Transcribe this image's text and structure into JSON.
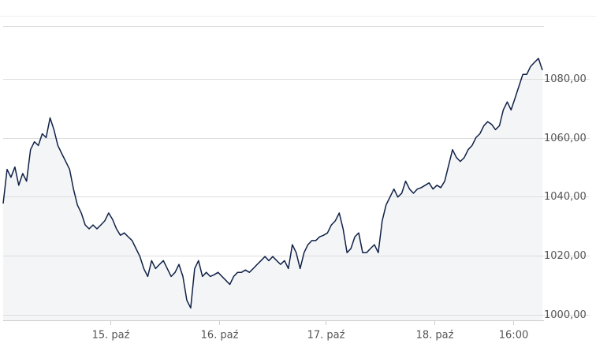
{
  "chart_data": {
    "type": "line",
    "series": [
      {
        "name": null,
        "color": "#0f2147",
        "values": [
          1037.7,
          1049.3,
          1046.6,
          1050.1,
          1043.9,
          1047.9,
          1045.3,
          1056.0,
          1058.7,
          1057.4,
          1061.4,
          1060.1,
          1066.8,
          1062.8,
          1057.4,
          1054.7,
          1052.0,
          1049.3,
          1042.6,
          1037.2,
          1034.5,
          1030.4,
          1029.1,
          1030.4,
          1029.1,
          1030.4,
          1031.8,
          1034.5,
          1032.3,
          1029.1,
          1026.9,
          1027.7,
          1026.4,
          1025.1,
          1022.4,
          1019.7,
          1015.6,
          1012.9,
          1018.3,
          1015.6,
          1017.0,
          1018.3,
          1015.6,
          1012.9,
          1014.3,
          1017.0,
          1012.9,
          1004.8,
          1002.2,
          1015.6,
          1018.3,
          1012.9,
          1014.3,
          1012.9,
          1013.5,
          1014.3,
          1012.9,
          1011.6,
          1010.2,
          1012.9,
          1014.3,
          1014.3,
          1015.1,
          1014.3,
          1015.6,
          1017.0,
          1018.3,
          1019.7,
          1018.3,
          1019.7,
          1018.3,
          1017.0,
          1018.3,
          1015.6,
          1023.7,
          1021.0,
          1015.6,
          1021.0,
          1023.7,
          1025.1,
          1025.1,
          1026.4,
          1026.9,
          1027.7,
          1030.4,
          1031.8,
          1034.5,
          1029.1,
          1021.0,
          1022.4,
          1026.4,
          1027.7,
          1021.0,
          1021.0,
          1022.4,
          1023.7,
          1021.0,
          1031.8,
          1037.2,
          1039.9,
          1042.6,
          1039.9,
          1041.2,
          1045.3,
          1042.6,
          1041.2,
          1042.6,
          1043.1,
          1043.9,
          1044.7,
          1042.6,
          1043.9,
          1043.1,
          1045.3,
          1050.6,
          1056.0,
          1053.3,
          1052.0,
          1053.3,
          1056.0,
          1057.4,
          1060.1,
          1061.4,
          1064.1,
          1065.5,
          1064.6,
          1062.8,
          1064.1,
          1069.5,
          1072.2,
          1069.5,
          1073.5,
          1077.6,
          1081.6,
          1081.6,
          1084.3,
          1085.7,
          1087.0,
          1083.0
        ]
      }
    ],
    "xlim": [
      0,
      138
    ],
    "xticks": [
      {
        "value": 27.4,
        "label": "15. paź"
      },
      {
        "value": 55.3,
        "label": "16. paź"
      },
      {
        "value": 82.5,
        "label": "17. paź"
      },
      {
        "value": 110.4,
        "label": "18. paź"
      },
      {
        "value": 130.5,
        "label": "16:00"
      }
    ],
    "ylim": [
      998,
      1098
    ],
    "yticks": [
      {
        "value": 1000,
        "label": "1000,00"
      },
      {
        "value": 1020,
        "label": "1020,00"
      },
      {
        "value": 1040,
        "label": "1040,00"
      },
      {
        "value": 1060,
        "label": "1060,00"
      },
      {
        "value": 1080,
        "label": "1080,00"
      }
    ],
    "grid": true,
    "fill": "#f4f5f7"
  }
}
